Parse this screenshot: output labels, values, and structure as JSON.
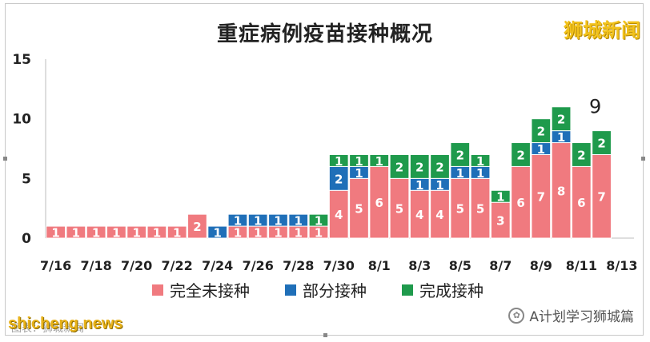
{
  "title": "重症病例疫苗接种概况",
  "brand": "狮城新闻",
  "watermark_left": "shicheng.news",
  "watermark_left_sub": "图表：狮城新闻",
  "watermark_right": "A计划学习狮城篇",
  "colors": {
    "unvaccinated": "#f07a7f",
    "partial": "#1f6fb8",
    "full": "#1f9a4c"
  },
  "chart_data": {
    "type": "bar",
    "stacked": true,
    "categories": [
      "7/16",
      "7/17",
      "7/18",
      "7/19",
      "7/20",
      "7/21",
      "7/22",
      "7/23",
      "7/24",
      "7/25",
      "7/26",
      "7/27",
      "7/28",
      "7/29",
      "7/30",
      "7/31",
      "8/1",
      "8/2",
      "8/3",
      "8/4",
      "8/5",
      "8/6",
      "8/7",
      "8/8",
      "8/9",
      "8/10",
      "8/11",
      "8/12"
    ],
    "tick_labels": [
      "7/16",
      "7/18",
      "7/20",
      "7/22",
      "7/24",
      "7/26",
      "7/28",
      "7/30",
      "8/1",
      "8/3",
      "8/5",
      "8/7",
      "8/9",
      "8/11",
      "8/13"
    ],
    "series": [
      {
        "name": "完全未接种",
        "values": [
          1,
          1,
          1,
          1,
          1,
          1,
          1,
          2,
          0,
          1,
          1,
          1,
          1,
          1,
          4,
          5,
          6,
          5,
          4,
          4,
          5,
          5,
          3,
          6,
          7,
          8,
          6,
          7
        ]
      },
      {
        "name": "部分接种",
        "values": [
          0,
          0,
          0,
          0,
          0,
          0,
          0,
          0,
          1,
          1,
          1,
          1,
          1,
          0,
          2,
          1,
          0,
          0,
          1,
          1,
          1,
          1,
          0,
          0,
          1,
          1,
          0,
          0
        ]
      },
      {
        "name": "完成接种",
        "values": [
          0,
          0,
          0,
          0,
          0,
          0,
          0,
          0,
          0,
          0,
          0,
          0,
          0,
          1,
          1,
          1,
          1,
          2,
          2,
          2,
          2,
          1,
          1,
          2,
          2,
          2,
          2,
          2
        ]
      }
    ],
    "annotations": [
      {
        "category": "8/12",
        "text": "9"
      }
    ],
    "ylim": [
      0,
      15
    ],
    "yticks": [
      0,
      5,
      10,
      15
    ],
    "grid": false,
    "legend": "bottom"
  }
}
